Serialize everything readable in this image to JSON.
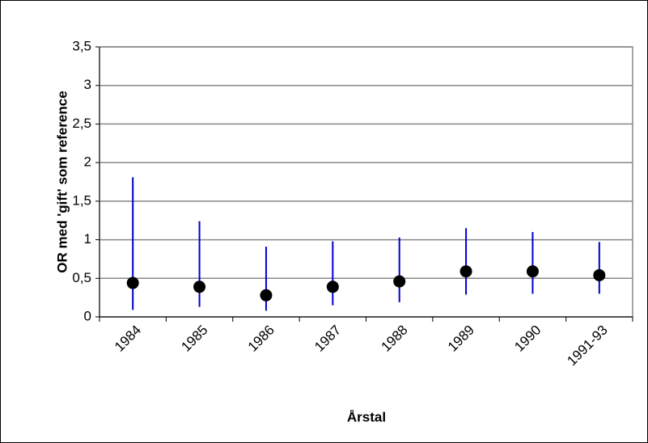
{
  "chart_data": {
    "type": "errorbar",
    "y_label": "OR med 'gift' som reference",
    "x_label": "Årstal",
    "categories": [
      "1984",
      "1985",
      "1986",
      "1987",
      "1988",
      "1989",
      "1990",
      "1991-93"
    ],
    "values": [
      0.44,
      0.39,
      0.28,
      0.39,
      0.46,
      0.59,
      0.59,
      0.54
    ],
    "lower": [
      0.09,
      0.13,
      0.08,
      0.15,
      0.19,
      0.29,
      0.3,
      0.3
    ],
    "upper": [
      1.81,
      1.24,
      0.91,
      0.98,
      1.03,
      1.15,
      1.1,
      0.97
    ],
    "color": "#0000cc",
    "marker_color": "#000000",
    "ylim": [
      0,
      3.5
    ],
    "yticks": [
      0,
      {
        "value": 0.5,
        "label": "0,5"
      },
      1,
      {
        "value": 1.5,
        "label": "1,5"
      },
      2,
      {
        "value": 2.5,
        "label": "2,5"
      },
      3,
      {
        "value": 3.5,
        "label": "3,5"
      }
    ],
    "grid": true
  }
}
